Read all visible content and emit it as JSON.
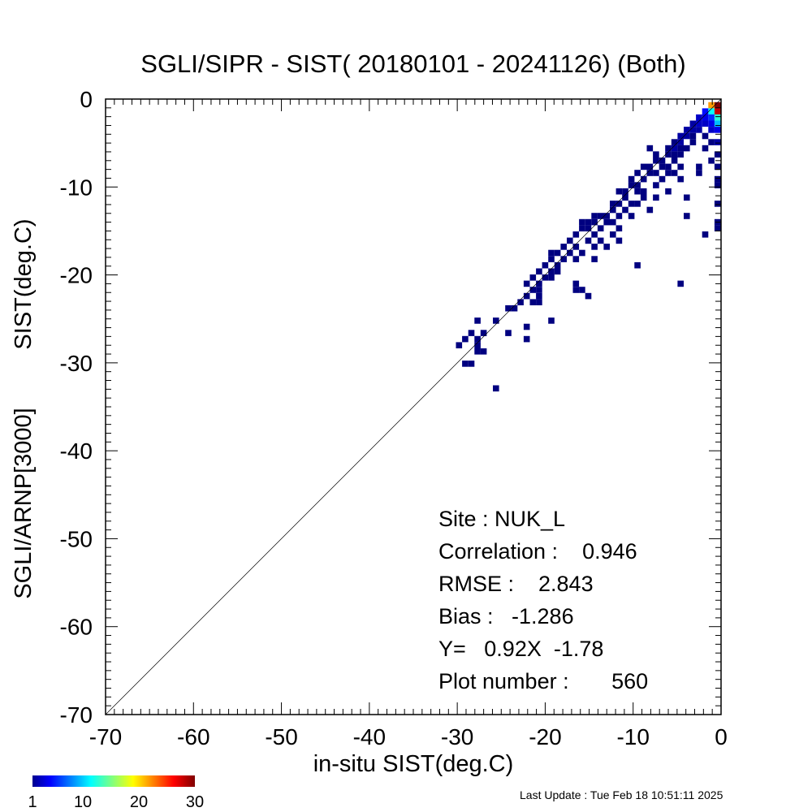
{
  "chart_data": {
    "type": "heatmap",
    "title": "SGLI/SIPR - SIST( 20180101 - 20241126) (Both)",
    "xlabel": "in-situ SIST(deg.C)",
    "ylabel_lines": [
      "SGLI/ARNP[3000]",
      "SIST(deg.C)"
    ],
    "xlim": [
      -70,
      0
    ],
    "ylim": [
      -70,
      0
    ],
    "x_ticks": [
      -70,
      -60,
      -50,
      -40,
      -30,
      -20,
      -10,
      0
    ],
    "y_ticks": [
      -70,
      -60,
      -50,
      -40,
      -30,
      -20,
      -10,
      0
    ],
    "one_to_one_line": true,
    "bin_size": 0.7,
    "colorbar": {
      "min": 1,
      "max": 30,
      "tick_labels": [
        "1",
        "10",
        "20",
        "30"
      ],
      "tick_values": [
        1,
        10,
        20,
        30
      ]
    },
    "stats": {
      "site": "Site : NUK_L",
      "correlation": "Correlation :    0.946",
      "rmse": "RMSE :    2.843",
      "bias": "Bias :   -1.286",
      "regression": "Y=   0.92X  -1.78",
      "plot_number": "Plot number :       560"
    },
    "cells": [
      [
        -1.1,
        -0.7,
        22
      ],
      [
        -0.4,
        -0.7,
        30
      ],
      [
        -1.1,
        -1.4,
        12
      ],
      [
        -0.4,
        -1.4,
        28
      ],
      [
        -0.4,
        -2.1,
        13
      ],
      [
        -1.1,
        -2.1,
        6
      ],
      [
        -1.8,
        -1.4,
        5
      ],
      [
        -1.8,
        -2.1,
        4
      ],
      [
        -2.5,
        -2.1,
        3
      ],
      [
        -0.4,
        -2.8,
        10
      ],
      [
        -1.1,
        -2.8,
        4
      ],
      [
        -1.8,
        -2.8,
        3
      ],
      [
        -2.5,
        -2.8,
        3
      ],
      [
        -3.2,
        -2.8,
        2
      ],
      [
        -0.4,
        -3.5,
        4
      ],
      [
        -1.1,
        -3.5,
        3
      ],
      [
        -2.5,
        -3.5,
        2
      ],
      [
        -3.2,
        -3.5,
        2
      ],
      [
        -3.9,
        -3.5,
        2
      ],
      [
        -4.6,
        -4.2,
        2
      ],
      [
        -3.9,
        -4.2,
        2
      ],
      [
        -3.2,
        -4.2,
        1
      ],
      [
        -1.8,
        -4.2,
        1
      ],
      [
        -0.4,
        -4.9,
        2
      ],
      [
        -1.1,
        -4.9,
        1
      ],
      [
        -4.6,
        -4.9,
        2
      ],
      [
        -5.3,
        -4.9,
        1
      ],
      [
        -3.2,
        -4.9,
        1
      ],
      [
        -6.0,
        -5.6,
        1
      ],
      [
        -5.3,
        -5.6,
        2
      ],
      [
        -4.6,
        -5.6,
        1
      ],
      [
        -3.9,
        -5.6,
        1
      ],
      [
        -1.8,
        -5.6,
        1
      ],
      [
        -0.4,
        -6.3,
        1
      ],
      [
        -6.0,
        -6.3,
        1
      ],
      [
        -5.3,
        -6.3,
        1
      ],
      [
        -4.6,
        -6.3,
        1
      ],
      [
        -7.4,
        -6.3,
        1
      ],
      [
        -1.1,
        -7.0,
        1
      ],
      [
        -6.7,
        -7.0,
        1
      ],
      [
        -5.3,
        -7.0,
        1
      ],
      [
        -8.1,
        -5.6,
        1
      ],
      [
        -7.4,
        -7.0,
        1
      ],
      [
        -0.4,
        -7.7,
        1
      ],
      [
        -6.7,
        -7.7,
        1
      ],
      [
        -6.0,
        -7.7,
        1
      ],
      [
        -4.6,
        -7.7,
        1
      ],
      [
        -8.1,
        -7.7,
        1
      ],
      [
        -8.8,
        -7.7,
        1
      ],
      [
        -2.5,
        -7.7,
        1
      ],
      [
        -5.3,
        -8.4,
        1
      ],
      [
        -6.0,
        -8.4,
        1
      ],
      [
        -7.4,
        -8.4,
        1
      ],
      [
        -8.1,
        -8.4,
        1
      ],
      [
        -9.5,
        -8.4,
        1
      ],
      [
        -2.5,
        -8.4,
        1
      ],
      [
        -0.4,
        -9.1,
        1
      ],
      [
        -6.7,
        -9.1,
        1
      ],
      [
        -8.8,
        -9.1,
        1
      ],
      [
        -10.2,
        -9.1,
        1
      ],
      [
        -4.6,
        -9.1,
        1
      ],
      [
        -9.5,
        -9.8,
        1
      ],
      [
        -10.2,
        -9.8,
        1
      ],
      [
        -7.4,
        -9.8,
        1
      ],
      [
        -0.4,
        -9.8,
        1
      ],
      [
        -11.6,
        -10.5,
        1
      ],
      [
        -10.9,
        -10.5,
        1
      ],
      [
        -9.5,
        -10.5,
        1
      ],
      [
        -8.8,
        -10.5,
        1
      ],
      [
        -6.0,
        -10.5,
        1
      ],
      [
        -10.9,
        -11.2,
        1
      ],
      [
        -8.8,
        -11.2,
        1
      ],
      [
        -7.4,
        -11.2,
        1
      ],
      [
        -3.9,
        -11.2,
        1
      ],
      [
        -12.3,
        -11.9,
        1
      ],
      [
        -11.6,
        -11.9,
        1
      ],
      [
        -10.2,
        -11.9,
        1
      ],
      [
        -9.5,
        -11.9,
        1
      ],
      [
        -0.4,
        -11.9,
        1
      ],
      [
        -12.3,
        -12.6,
        1
      ],
      [
        -10.9,
        -12.6,
        1
      ],
      [
        -8.1,
        -12.6,
        1
      ],
      [
        -13.0,
        -13.3,
        1
      ],
      [
        -11.6,
        -13.3,
        1
      ],
      [
        -10.2,
        -13.3,
        1
      ],
      [
        -13.7,
        -13.3,
        1
      ],
      [
        -14.4,
        -13.3,
        1
      ],
      [
        -3.9,
        -13.3,
        1
      ],
      [
        -12.3,
        -14.0,
        1
      ],
      [
        -13.0,
        -14.0,
        1
      ],
      [
        -14.4,
        -14.0,
        1
      ],
      [
        -15.1,
        -14.0,
        1
      ],
      [
        -15.8,
        -14.0,
        1
      ],
      [
        -0.4,
        -14.0,
        1
      ],
      [
        -11.6,
        -14.7,
        1
      ],
      [
        -13.7,
        -14.7,
        1
      ],
      [
        -15.1,
        -14.7,
        1
      ],
      [
        -15.8,
        -14.7,
        1
      ],
      [
        -0.4,
        -14.7,
        1
      ],
      [
        -12.3,
        -15.4,
        1
      ],
      [
        -14.4,
        -15.4,
        1
      ],
      [
        -16.5,
        -15.4,
        1
      ],
      [
        -1.8,
        -15.4,
        1
      ],
      [
        -13.7,
        -16.1,
        1
      ],
      [
        -15.1,
        -16.1,
        1
      ],
      [
        -17.2,
        -16.1,
        1
      ],
      [
        -11.6,
        -16.1,
        1
      ],
      [
        -14.4,
        -16.8,
        1
      ],
      [
        -16.5,
        -16.8,
        1
      ],
      [
        -17.9,
        -16.8,
        1
      ],
      [
        -13.0,
        -16.8,
        1
      ],
      [
        -15.8,
        -17.5,
        1
      ],
      [
        -17.2,
        -17.5,
        1
      ],
      [
        -18.6,
        -17.5,
        1
      ],
      [
        -19.3,
        -17.5,
        1
      ],
      [
        -16.5,
        -18.2,
        1
      ],
      [
        -17.9,
        -18.2,
        1
      ],
      [
        -19.3,
        -18.2,
        1
      ],
      [
        -14.4,
        -18.2,
        1
      ],
      [
        -18.6,
        -18.9,
        1
      ],
      [
        -20.0,
        -18.9,
        1
      ],
      [
        -9.5,
        -18.9,
        1
      ],
      [
        -19.3,
        -19.6,
        1
      ],
      [
        -20.7,
        -19.6,
        1
      ],
      [
        -18.6,
        -19.6,
        1
      ],
      [
        -20.0,
        -20.3,
        1
      ],
      [
        -21.4,
        -20.3,
        1
      ],
      [
        -19.3,
        -20.3,
        1
      ],
      [
        -20.7,
        -21.0,
        1
      ],
      [
        -22.1,
        -21.0,
        1
      ],
      [
        -16.5,
        -21.0,
        1
      ],
      [
        -4.6,
        -21.0,
        1
      ],
      [
        -21.4,
        -21.7,
        1
      ],
      [
        -20.7,
        -21.7,
        1
      ],
      [
        -16.5,
        -21.7,
        1
      ],
      [
        -15.8,
        -21.7,
        1
      ],
      [
        -22.1,
        -22.4,
        1
      ],
      [
        -20.7,
        -22.4,
        1
      ],
      [
        -15.1,
        -22.4,
        1
      ],
      [
        -21.4,
        -23.1,
        1
      ],
      [
        -20.7,
        -23.1,
        1
      ],
      [
        -22.8,
        -23.1,
        1
      ],
      [
        -23.5,
        -23.8,
        1
      ],
      [
        -24.2,
        -23.8,
        1
      ],
      [
        -25.6,
        -25.2,
        1
      ],
      [
        -19.3,
        -25.2,
        1
      ],
      [
        -27.7,
        -25.2,
        1
      ],
      [
        -22.1,
        -25.9,
        1
      ],
      [
        -24.2,
        -26.6,
        1
      ],
      [
        -27.0,
        -26.6,
        1
      ],
      [
        -28.4,
        -26.6,
        1
      ],
      [
        -29.1,
        -27.3,
        1
      ],
      [
        -27.7,
        -27.3,
        1
      ],
      [
        -22.1,
        -27.3,
        1
      ],
      [
        -29.8,
        -28.0,
        1
      ],
      [
        -27.7,
        -28.0,
        1
      ],
      [
        -27.0,
        -28.7,
        1
      ],
      [
        -27.7,
        -28.7,
        1
      ],
      [
        -29.1,
        -30.1,
        1
      ],
      [
        -28.4,
        -30.1,
        1
      ],
      [
        -25.6,
        -32.9,
        1
      ]
    ],
    "footer": "Last Update : Tue Feb 18 10:51:11 2025"
  }
}
